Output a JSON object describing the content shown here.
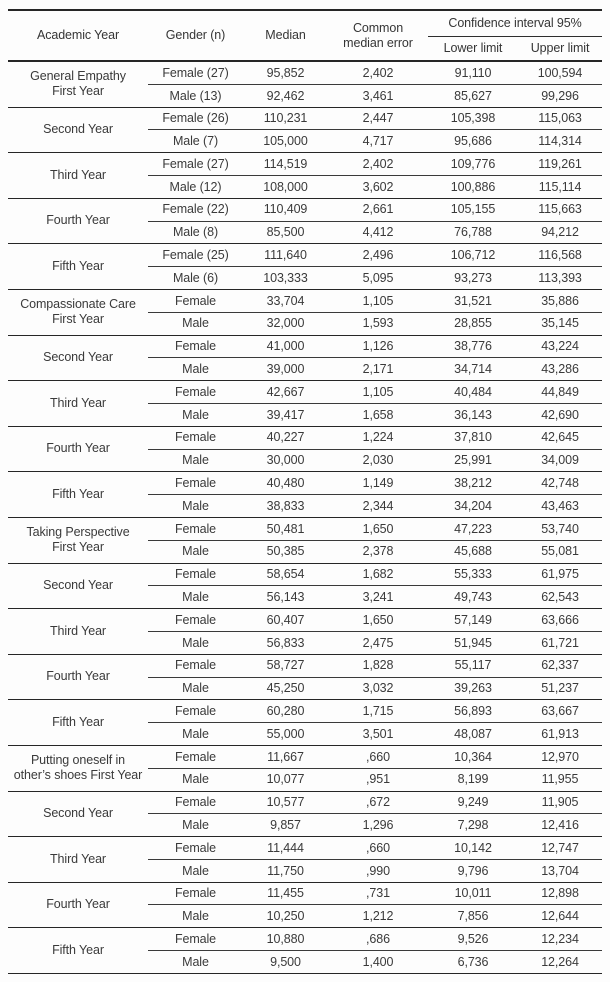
{
  "table": {
    "headers": {
      "academic_year": "Academic Year",
      "gender": "Gender (n)",
      "median": "Median",
      "common_median_error": "Common\nmedian error",
      "confidence_interval": "Confidence interval 95%",
      "lower_limit": "Lower limit",
      "upper_limit": "Upper limit"
    },
    "colors": {
      "text": "#3a3a3a",
      "rule_heavy": "#262626",
      "rule_light": "#3a3a3a",
      "background": "#fdfdfd"
    },
    "groups": [
      {
        "label": "General Empathy\nFirst Year",
        "rows": [
          {
            "gender": "Female (27)",
            "median": "95,852",
            "error": "2,402",
            "lower": "91,110",
            "upper": "100,594"
          },
          {
            "gender": "Male (13)",
            "median": "92,462",
            "error": "3,461",
            "lower": "85,627",
            "upper": "99,296"
          }
        ]
      },
      {
        "label": "Second Year",
        "rows": [
          {
            "gender": "Female (26)",
            "median": "110,231",
            "error": "2,447",
            "lower": "105,398",
            "upper": "115,063"
          },
          {
            "gender": "Male (7)",
            "median": "105,000",
            "error": "4,717",
            "lower": "95,686",
            "upper": "114,314"
          }
        ]
      },
      {
        "label": "Third Year",
        "rows": [
          {
            "gender": "Female (27)",
            "median": "114,519",
            "error": "2,402",
            "lower": "109,776",
            "upper": "119,261"
          },
          {
            "gender": "Male (12)",
            "median": "108,000",
            "error": "3,602",
            "lower": "100,886",
            "upper": "115,114"
          }
        ]
      },
      {
        "label": "Fourth Year",
        "rows": [
          {
            "gender": "Female (22)",
            "median": "110,409",
            "error": "2,661",
            "lower": "105,155",
            "upper": "115,663"
          },
          {
            "gender": "Male (8)",
            "median": "85,500",
            "error": "4,412",
            "lower": "76,788",
            "upper": "94,212"
          }
        ]
      },
      {
        "label": "Fifth Year",
        "rows": [
          {
            "gender": "Female (25)",
            "median": "111,640",
            "error": "2,496",
            "lower": "106,712",
            "upper": "116,568"
          },
          {
            "gender": "Male (6)",
            "median": "103,333",
            "error": "5,095",
            "lower": "93,273",
            "upper": "113,393"
          }
        ]
      },
      {
        "label": "Compassionate Care\nFirst Year",
        "rows": [
          {
            "gender": "Female",
            "median": "33,704",
            "error": "1,105",
            "lower": "31,521",
            "upper": "35,886"
          },
          {
            "gender": "Male",
            "median": "32,000",
            "error": "1,593",
            "lower": "28,855",
            "upper": "35,145"
          }
        ]
      },
      {
        "label": "Second Year",
        "rows": [
          {
            "gender": "Female",
            "median": "41,000",
            "error": "1,126",
            "lower": "38,776",
            "upper": "43,224"
          },
          {
            "gender": "Male",
            "median": "39,000",
            "error": "2,171",
            "lower": "34,714",
            "upper": "43,286"
          }
        ]
      },
      {
        "label": "Third Year",
        "rows": [
          {
            "gender": "Female",
            "median": "42,667",
            "error": "1,105",
            "lower": "40,484",
            "upper": "44,849"
          },
          {
            "gender": "Male",
            "median": "39,417",
            "error": "1,658",
            "lower": "36,143",
            "upper": "42,690"
          }
        ]
      },
      {
        "label": "Fourth Year",
        "rows": [
          {
            "gender": "Female",
            "median": "40,227",
            "error": "1,224",
            "lower": "37,810",
            "upper": "42,645"
          },
          {
            "gender": "Male",
            "median": "30,000",
            "error": "2,030",
            "lower": "25,991",
            "upper": "34,009"
          }
        ]
      },
      {
        "label": "Fifth Year",
        "rows": [
          {
            "gender": "Female",
            "median": "40,480",
            "error": "1,149",
            "lower": "38,212",
            "upper": "42,748"
          },
          {
            "gender": "Male",
            "median": "38,833",
            "error": "2,344",
            "lower": "34,204",
            "upper": "43,463"
          }
        ]
      },
      {
        "label": "Taking Perspective\nFirst Year",
        "rows": [
          {
            "gender": "Female",
            "median": "50,481",
            "error": "1,650",
            "lower": "47,223",
            "upper": "53,740"
          },
          {
            "gender": "Male",
            "median": "50,385",
            "error": "2,378",
            "lower": "45,688",
            "upper": "55,081"
          }
        ]
      },
      {
        "label": "Second Year",
        "rows": [
          {
            "gender": "Female",
            "median": "58,654",
            "error": "1,682",
            "lower": "55,333",
            "upper": "61,975"
          },
          {
            "gender": "Male",
            "median": "56,143",
            "error": "3,241",
            "lower": "49,743",
            "upper": "62,543"
          }
        ]
      },
      {
        "label": "Third Year",
        "rows": [
          {
            "gender": "Female",
            "median": "60,407",
            "error": "1,650",
            "lower": "57,149",
            "upper": "63,666"
          },
          {
            "gender": "Male",
            "median": "56,833",
            "error": "2,475",
            "lower": "51,945",
            "upper": "61,721"
          }
        ]
      },
      {
        "label": "Fourth Year",
        "rows": [
          {
            "gender": "Female",
            "median": "58,727",
            "error": "1,828",
            "lower": "55,117",
            "upper": "62,337"
          },
          {
            "gender": "Male",
            "median": "45,250",
            "error": "3,032",
            "lower": "39,263",
            "upper": "51,237"
          }
        ]
      },
      {
        "label": "Fifth Year",
        "rows": [
          {
            "gender": "Female",
            "median": "60,280",
            "error": "1,715",
            "lower": "56,893",
            "upper": "63,667"
          },
          {
            "gender": "Male",
            "median": "55,000",
            "error": "3,501",
            "lower": "48,087",
            "upper": "61,913"
          }
        ]
      },
      {
        "label": "Putting oneself in\nother’s shoes First Year",
        "rows": [
          {
            "gender": "Female",
            "median": "11,667",
            "error": ",660",
            "lower": "10,364",
            "upper": "12,970"
          },
          {
            "gender": "Male",
            "median": "10,077",
            "error": ",951",
            "lower": "8,199",
            "upper": "11,955"
          }
        ]
      },
      {
        "label": "Second Year",
        "rows": [
          {
            "gender": "Female",
            "median": "10,577",
            "error": ",672",
            "lower": "9,249",
            "upper": "11,905"
          },
          {
            "gender": "Male",
            "median": "9,857",
            "error": "1,296",
            "lower": "7,298",
            "upper": "12,416"
          }
        ]
      },
      {
        "label": "Third Year",
        "rows": [
          {
            "gender": "Female",
            "median": "11,444",
            "error": ",660",
            "lower": "10,142",
            "upper": "12,747"
          },
          {
            "gender": "Male",
            "median": "11,750",
            "error": ",990",
            "lower": "9,796",
            "upper": "13,704"
          }
        ]
      },
      {
        "label": "Fourth Year",
        "rows": [
          {
            "gender": "Female",
            "median": "11,455",
            "error": ",731",
            "lower": "10,011",
            "upper": "12,898"
          },
          {
            "gender": "Male",
            "median": "10,250",
            "error": "1,212",
            "lower": "7,856",
            "upper": "12,644"
          }
        ]
      },
      {
        "label": "Fifth Year",
        "rows": [
          {
            "gender": "Female",
            "median": "10,880",
            "error": ",686",
            "lower": "9,526",
            "upper": "12,234"
          },
          {
            "gender": "Male",
            "median": "9,500",
            "error": "1,400",
            "lower": "6,736",
            "upper": "12,264"
          }
        ]
      }
    ]
  }
}
